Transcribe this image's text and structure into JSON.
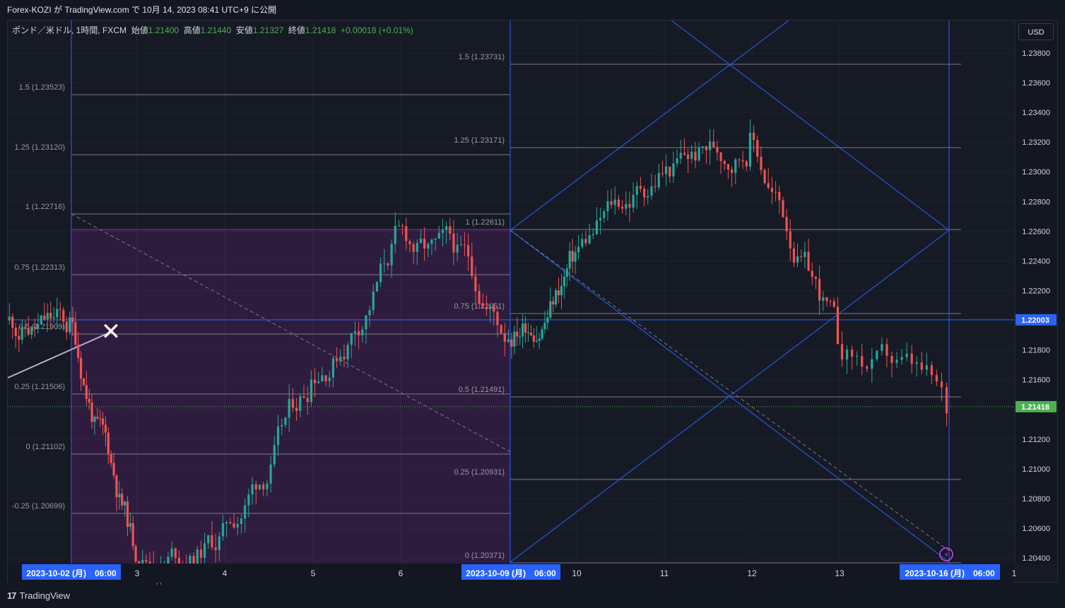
{
  "header": {
    "published_line": "Forex-KOZI が TradingView.com で 10月 14, 2023 08:41 UTC+9 に公開"
  },
  "legend": {
    "symbol": "ポンド／米ドル, 1時間, FXCM",
    "open_label": "始値",
    "open_value": "1.21400",
    "high_label": "高値",
    "high_value": "1.21440",
    "low_label": "安値",
    "low_value": "1.21327",
    "close_label": "終値",
    "close_value": "1.21418",
    "change": "+0.00018 (+0.01%)"
  },
  "currency_button": "USD",
  "footer": {
    "brand": "TradingView",
    "brand_mark": "17"
  },
  "colors": {
    "background": "#161a25",
    "up": "#26a69a",
    "down": "#ef5350",
    "fib_line": "#787b86",
    "blue": "#2962ff",
    "purple_zone": "#9c27b0",
    "current_price": "#4caf50"
  },
  "chart_data": {
    "type": "candlestick",
    "symbol": "GBPUSD",
    "timeframe": "1h",
    "y_axis": {
      "min": 1.204,
      "max": 1.238,
      "step": 0.002,
      "ticks": [
        "1.23800",
        "1.23600",
        "1.23400",
        "1.23200",
        "1.23000",
        "1.22800",
        "1.22600",
        "1.22400",
        "1.22200",
        "1.22000",
        "1.21800",
        "1.21600",
        "1.21400",
        "1.21200",
        "1.21000",
        "1.20800",
        "1.20600",
        "1.20400"
      ],
      "highlight_labels": [
        {
          "value": 1.22003,
          "text": "1.22003",
          "color": "#2962ff"
        },
        {
          "value": 1.21418,
          "text": "1.21418",
          "color": "#4caf50"
        }
      ]
    },
    "x_axis": {
      "labels": [
        "3",
        "4",
        "5",
        "6",
        "10",
        "11",
        "12",
        "13",
        "1"
      ],
      "highlight_labels": [
        "2023-10-02 (月)　06:00",
        "2023-10-09 (月)　06:00",
        "2023-10-16 (月)　06:00"
      ]
    },
    "candles_by_day": [
      {
        "day": "2023-10-02",
        "ohlc": [
          1.218,
          1.224,
          1.2165,
          1.2215
        ]
      },
      {
        "day": "2023-10-03",
        "ohlc": [
          1.2185,
          1.219,
          1.203,
          1.2045
        ]
      },
      {
        "day": "2023-10-04",
        "ohlc": [
          1.2045,
          1.211,
          1.2035,
          1.206
        ]
      },
      {
        "day": "2023-10-05",
        "ohlc": [
          1.206,
          1.2175,
          1.205,
          1.2145
        ]
      },
      {
        "day": "2023-10-06",
        "ohlc": [
          1.2145,
          1.226,
          1.2105,
          1.2265
        ]
      },
      {
        "day": "2023-10-09",
        "ohlc": [
          1.225,
          1.2245,
          1.216,
          1.221
        ]
      },
      {
        "day": "2023-10-10",
        "ohlc": [
          1.22,
          1.228,
          1.218,
          1.2275
        ]
      },
      {
        "day": "2023-10-11",
        "ohlc": [
          1.2275,
          1.2335,
          1.226,
          1.231
        ]
      },
      {
        "day": "2023-10-12",
        "ohlc": [
          1.231,
          1.2315,
          1.224,
          1.227
        ]
      },
      {
        "day": "2023-10-13",
        "ohlc": [
          1.227,
          1.2225,
          1.2125,
          1.2142
        ]
      }
    ],
    "fib_sets": [
      {
        "name": "fib-2023-10-02",
        "levels": [
          {
            "ratio": "1.5",
            "price": 1.23523,
            "label": "1.5 (1.23523)"
          },
          {
            "ratio": "1.25",
            "price": 1.2312,
            "label": "1.25 (1.23120)"
          },
          {
            "ratio": "1",
            "price": 1.22716,
            "label": "1 (1.22716)"
          },
          {
            "ratio": "0.75",
            "price": 1.22313,
            "label": "0.75 (1.22313)"
          },
          {
            "ratio": "0.5",
            "price": 1.21909,
            "label": "0.5 (1.21909)"
          },
          {
            "ratio": "0.25",
            "price": 1.21506,
            "label": "0.25 (1.21506)"
          },
          {
            "ratio": "0",
            "price": 1.21102,
            "label": "0 (1.21102)"
          },
          {
            "ratio": "-0.25",
            "price": 1.20699,
            "label": "-0.25 (1.20699)"
          }
        ]
      },
      {
        "name": "fib-2023-10-09",
        "levels": [
          {
            "ratio": "1.5",
            "price": 1.23731,
            "label": "1.5 (1.23731)"
          },
          {
            "ratio": "1.25",
            "price": 1.23171,
            "label": "1.25 (1.23171)"
          },
          {
            "ratio": "1",
            "price": 1.22611,
            "label": "1 (1.22611)"
          },
          {
            "ratio": "0.75",
            "price": 1.22051,
            "label": "0.75 (1.22051)"
          },
          {
            "ratio": "0.5",
            "price": 1.21491,
            "label": "0.5 (1.21491)"
          },
          {
            "ratio": "0.25",
            "price": 1.20931,
            "label": "0.25 (1.20931)"
          },
          {
            "ratio": "0",
            "price": 1.20371,
            "label": "0 (1.20371)"
          }
        ]
      }
    ],
    "horizontal_line": 1.22003,
    "current_price": 1.21418,
    "marker": "✕"
  }
}
